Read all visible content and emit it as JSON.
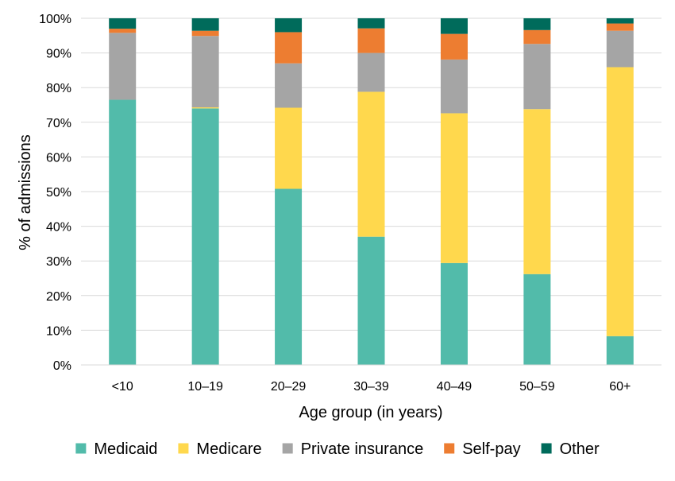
{
  "chart_data": {
    "type": "bar",
    "stacked": true,
    "title": "",
    "xlabel": "Age group (in years)",
    "ylabel": "% of admissions",
    "ylim": [
      0,
      100
    ],
    "yticks": [
      "0%",
      "10%",
      "20%",
      "30%",
      "40%",
      "50%",
      "60%",
      "70%",
      "80%",
      "90%",
      "100%"
    ],
    "categories": [
      "<10",
      "10–19",
      "20–29",
      "30–39",
      "40–49",
      "50–59",
      "60+"
    ],
    "grid": true,
    "legend_position": "bottom",
    "series": [
      {
        "name": "Medicaid",
        "color": "#52BBAA",
        "values": [
          76.5,
          74.0,
          50.8,
          37.0,
          29.4,
          26.2,
          8.3
        ]
      },
      {
        "name": "Medicare",
        "color": "#FFD84D",
        "values": [
          0.0,
          0.3,
          23.4,
          41.8,
          43.2,
          47.6,
          77.6
        ]
      },
      {
        "name": "Private insurance",
        "color": "#A5A5A5",
        "values": [
          19.3,
          20.6,
          12.8,
          11.2,
          15.5,
          18.8,
          10.5
        ]
      },
      {
        "name": "Self-pay",
        "color": "#ED7D31",
        "values": [
          1.2,
          1.5,
          9.0,
          7.1,
          7.4,
          4.0,
          2.1
        ]
      },
      {
        "name": "Other",
        "color": "#006B5B",
        "values": [
          3.0,
          3.6,
          4.0,
          2.9,
          4.5,
          3.4,
          1.5
        ]
      }
    ]
  }
}
